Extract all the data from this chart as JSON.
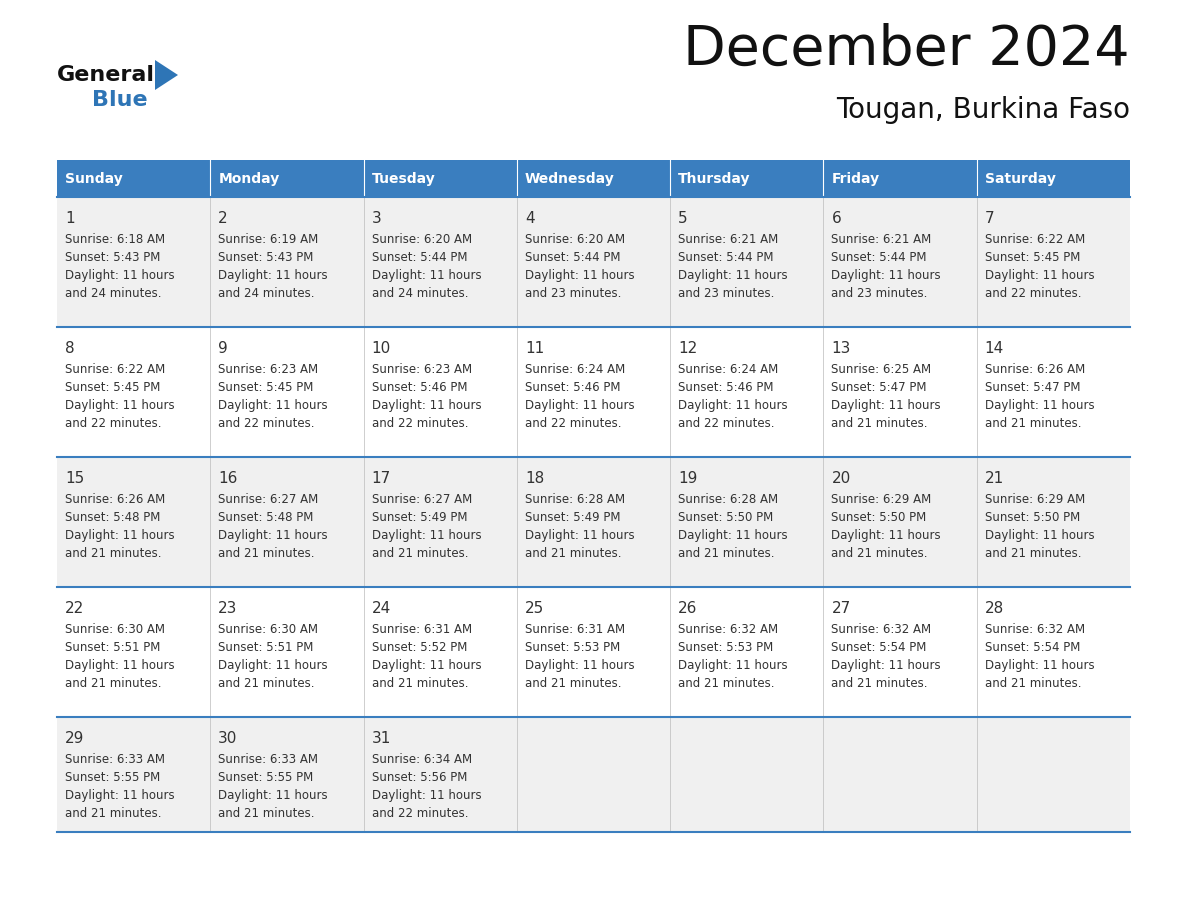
{
  "title": "December 2024",
  "subtitle": "Tougan, Burkina Faso",
  "header_bg_color": "#3A7EBF",
  "header_text_color": "#FFFFFF",
  "row_bg_color_odd": "#F0F0F0",
  "row_bg_color_even": "#FFFFFF",
  "grid_line_color": "#3A7EBF",
  "day_headers": [
    "Sunday",
    "Monday",
    "Tuesday",
    "Wednesday",
    "Thursday",
    "Friday",
    "Saturday"
  ],
  "cell_text_color": "#333333",
  "title_color": "#111111",
  "logo_general_color": "#111111",
  "logo_blue_color": "#2E75B6",
  "weeks": [
    [
      {
        "day": 1,
        "sunrise": "6:18 AM",
        "sunset": "5:43 PM",
        "daylight_mins": "24"
      },
      {
        "day": 2,
        "sunrise": "6:19 AM",
        "sunset": "5:43 PM",
        "daylight_mins": "24"
      },
      {
        "day": 3,
        "sunrise": "6:20 AM",
        "sunset": "5:44 PM",
        "daylight_mins": "24"
      },
      {
        "day": 4,
        "sunrise": "6:20 AM",
        "sunset": "5:44 PM",
        "daylight_mins": "23"
      },
      {
        "day": 5,
        "sunrise": "6:21 AM",
        "sunset": "5:44 PM",
        "daylight_mins": "23"
      },
      {
        "day": 6,
        "sunrise": "6:21 AM",
        "sunset": "5:44 PM",
        "daylight_mins": "23"
      },
      {
        "day": 7,
        "sunrise": "6:22 AM",
        "sunset": "5:45 PM",
        "daylight_mins": "22"
      }
    ],
    [
      {
        "day": 8,
        "sunrise": "6:22 AM",
        "sunset": "5:45 PM",
        "daylight_mins": "22"
      },
      {
        "day": 9,
        "sunrise": "6:23 AM",
        "sunset": "5:45 PM",
        "daylight_mins": "22"
      },
      {
        "day": 10,
        "sunrise": "6:23 AM",
        "sunset": "5:46 PM",
        "daylight_mins": "22"
      },
      {
        "day": 11,
        "sunrise": "6:24 AM",
        "sunset": "5:46 PM",
        "daylight_mins": "22"
      },
      {
        "day": 12,
        "sunrise": "6:24 AM",
        "sunset": "5:46 PM",
        "daylight_mins": "22"
      },
      {
        "day": 13,
        "sunrise": "6:25 AM",
        "sunset": "5:47 PM",
        "daylight_mins": "21"
      },
      {
        "day": 14,
        "sunrise": "6:26 AM",
        "sunset": "5:47 PM",
        "daylight_mins": "21"
      }
    ],
    [
      {
        "day": 15,
        "sunrise": "6:26 AM",
        "sunset": "5:48 PM",
        "daylight_mins": "21"
      },
      {
        "day": 16,
        "sunrise": "6:27 AM",
        "sunset": "5:48 PM",
        "daylight_mins": "21"
      },
      {
        "day": 17,
        "sunrise": "6:27 AM",
        "sunset": "5:49 PM",
        "daylight_mins": "21"
      },
      {
        "day": 18,
        "sunrise": "6:28 AM",
        "sunset": "5:49 PM",
        "daylight_mins": "21"
      },
      {
        "day": 19,
        "sunrise": "6:28 AM",
        "sunset": "5:50 PM",
        "daylight_mins": "21"
      },
      {
        "day": 20,
        "sunrise": "6:29 AM",
        "sunset": "5:50 PM",
        "daylight_mins": "21"
      },
      {
        "day": 21,
        "sunrise": "6:29 AM",
        "sunset": "5:50 PM",
        "daylight_mins": "21"
      }
    ],
    [
      {
        "day": 22,
        "sunrise": "6:30 AM",
        "sunset": "5:51 PM",
        "daylight_mins": "21"
      },
      {
        "day": 23,
        "sunrise": "6:30 AM",
        "sunset": "5:51 PM",
        "daylight_mins": "21"
      },
      {
        "day": 24,
        "sunrise": "6:31 AM",
        "sunset": "5:52 PM",
        "daylight_mins": "21"
      },
      {
        "day": 25,
        "sunrise": "6:31 AM",
        "sunset": "5:53 PM",
        "daylight_mins": "21"
      },
      {
        "day": 26,
        "sunrise": "6:32 AM",
        "sunset": "5:53 PM",
        "daylight_mins": "21"
      },
      {
        "day": 27,
        "sunrise": "6:32 AM",
        "sunset": "5:54 PM",
        "daylight_mins": "21"
      },
      {
        "day": 28,
        "sunrise": "6:32 AM",
        "sunset": "5:54 PM",
        "daylight_mins": "21"
      }
    ],
    [
      {
        "day": 29,
        "sunrise": "6:33 AM",
        "sunset": "5:55 PM",
        "daylight_mins": "21"
      },
      {
        "day": 30,
        "sunrise": "6:33 AM",
        "sunset": "5:55 PM",
        "daylight_mins": "21"
      },
      {
        "day": 31,
        "sunrise": "6:34 AM",
        "sunset": "5:56 PM",
        "daylight_mins": "22"
      },
      null,
      null,
      null,
      null
    ]
  ]
}
